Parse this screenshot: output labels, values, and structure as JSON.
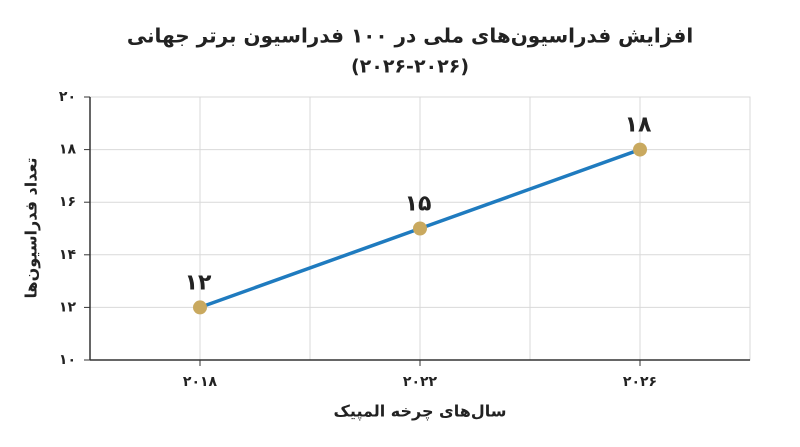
{
  "chart_data": {
    "type": "line",
    "title": "افزایش فدراسیون‌های ملی در ۱۰۰ فدراسیون برتر جهانی",
    "subtitle": "(۲۰۲۶-۲۰۲۶)",
    "x_label": "سال‌های چرخه المپیک",
    "y_label": "تعداد فدراسیون‌ها",
    "x": [
      2018,
      2022,
      2026
    ],
    "series": [
      {
        "color": "#1f7bbf",
        "marker_color": "#c9a95f",
        "values": [
          12,
          15,
          18
        ],
        "value_labels": [
          "۱۲",
          "۱۵",
          "۱۸"
        ]
      }
    ],
    "xlim": [
      2016,
      2028
    ],
    "xticks": [
      {
        "value": 2018,
        "label": "۲۰۱۸"
      },
      {
        "value": 2022,
        "label": "۲۰۲۲"
      },
      {
        "value": 2026,
        "label": "۲۰۲۶"
      }
    ],
    "ylim": [
      10,
      20
    ],
    "yticks": [
      {
        "value": 10,
        "label": "۱۰"
      },
      {
        "value": 12,
        "label": "۱۲"
      },
      {
        "value": 14,
        "label": "۱۴"
      },
      {
        "value": 16,
        "label": "۱۶"
      },
      {
        "value": 18,
        "label": "۱۸"
      },
      {
        "value": 20,
        "label": "۲۰"
      }
    ],
    "grid": true
  }
}
